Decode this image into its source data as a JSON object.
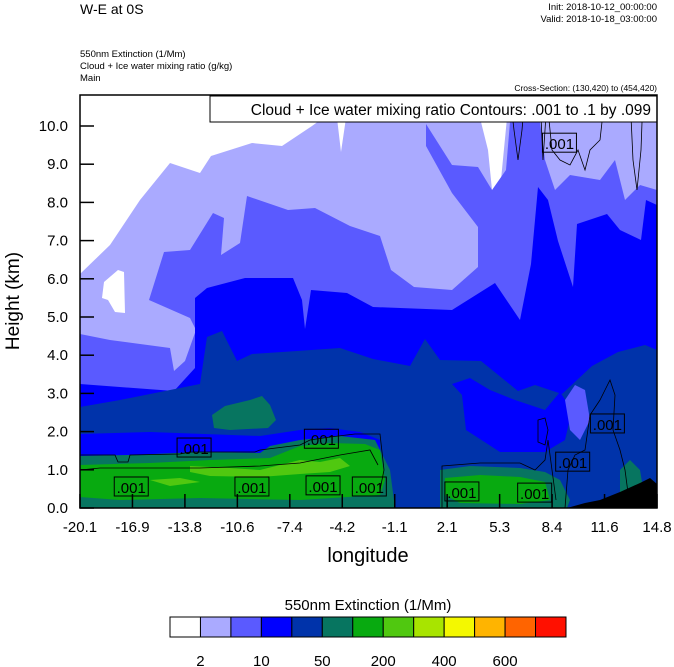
{
  "header": {
    "title": "W-E at 0S",
    "init": "Init: 2018-10-12_00:00:00",
    "valid": "Valid: 2018-10-18_03:00:00",
    "field_lines": [
      "550nm Extinction   (1/Mm)",
      "Cloud + Ice water mixing ratio   (g/kg)",
      "Main"
    ],
    "cross_section": "Cross-Section: (130,420) to (454,420)"
  },
  "chart_data": {
    "type": "heatmap",
    "subtype": "filled-contour cross-section with line contours",
    "contour_info": "Cloud + Ice water mixing ratio Contours: .001 to .1 by .099",
    "xlabel": "longitude",
    "ylabel": "Height (km)",
    "xlim": [
      -20.1,
      14.8
    ],
    "ylim": [
      0.0,
      10.8
    ],
    "x_ticks": [
      "-20.1",
      "-16.9",
      "-13.8",
      "-10.6",
      "-7.4",
      "-4.2",
      "-1.1",
      "2.1",
      "5.3",
      "8.4",
      "11.6",
      "14.8"
    ],
    "y_ticks": [
      "0.0",
      "1.0",
      "2.0",
      "3.0",
      "4.0",
      "5.0",
      "6.0",
      "7.0",
      "8.0",
      "9.0",
      "10.0"
    ],
    "contour_labels": [
      {
        "text": ".001",
        "lon": 8.9,
        "height": 9.55
      },
      {
        "text": ".001",
        "lon": -13.2,
        "height": 1.57
      },
      {
        "text": ".001",
        "lon": -5.5,
        "height": 1.8
      },
      {
        "text": ".001",
        "lon": -17.0,
        "height": 0.55
      },
      {
        "text": ".001",
        "lon": -9.7,
        "height": 0.55
      },
      {
        "text": ".001",
        "lon": -5.4,
        "height": 0.58
      },
      {
        "text": ".001",
        "lon": -2.6,
        "height": 0.55
      },
      {
        "text": ".001",
        "lon": 3.0,
        "height": 0.42
      },
      {
        "text": ".001",
        "lon": 7.4,
        "height": 0.39
      },
      {
        "text": ".001",
        "lon": 9.7,
        "height": 1.2
      },
      {
        "text": ".001",
        "lon": 11.8,
        "height": 2.2
      }
    ],
    "colorbar": {
      "title": "550nm Extinction  (1/Mm)",
      "colors": [
        "#FFFFFF",
        "#AAAAFF",
        "#5A5AFF",
        "#0000FF",
        "#0033AA",
        "#077560",
        "#08AA10",
        "#50C810",
        "#A8E400",
        "#F4F800",
        "#FFB400",
        "#FF6400",
        "#FF1000"
      ],
      "labels": [
        "2",
        "10",
        "50",
        "200",
        "400",
        "600"
      ]
    }
  }
}
